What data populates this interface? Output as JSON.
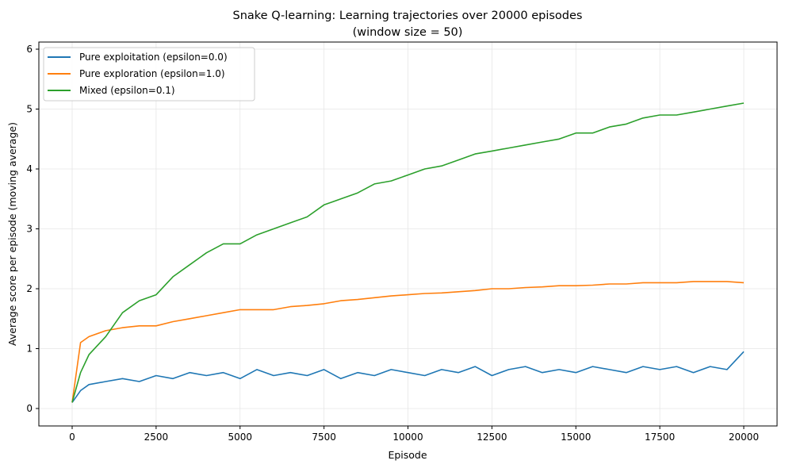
{
  "chart_data": {
    "type": "line",
    "title": "Snake Q-learning: Learning trajectories over 20000 episodes",
    "subtitle": "(window size = 50)",
    "xlabel": "Episode",
    "ylabel": "Average score per episode (moving average)",
    "xlim": [
      -1000,
      21000
    ],
    "ylim": [
      -0.3,
      6.1
    ],
    "xticks": [
      0,
      2500,
      5000,
      7500,
      10000,
      12500,
      15000,
      17500,
      20000
    ],
    "yticks": [
      0,
      1,
      2,
      3,
      4,
      5,
      6
    ],
    "grid": true,
    "legend_position": "top-left",
    "x": [
      0,
      250,
      500,
      1000,
      1500,
      2000,
      2500,
      3000,
      3500,
      4000,
      4500,
      5000,
      5500,
      6000,
      6500,
      7000,
      7500,
      8000,
      8500,
      9000,
      9500,
      10000,
      10500,
      11000,
      11500,
      12000,
      12500,
      13000,
      13500,
      14000,
      14500,
      15000,
      15500,
      16000,
      16500,
      17000,
      17500,
      18000,
      18500,
      19000,
      19500,
      20000
    ],
    "series": [
      {
        "name": "Pure exploitation (epsilon=0.0)",
        "color": "#1f77b4",
        "values": [
          0.1,
          0.3,
          0.4,
          0.45,
          0.5,
          0.45,
          0.55,
          0.5,
          0.6,
          0.55,
          0.6,
          0.5,
          0.65,
          0.55,
          0.6,
          0.55,
          0.65,
          0.5,
          0.6,
          0.55,
          0.65,
          0.6,
          0.55,
          0.65,
          0.6,
          0.7,
          0.55,
          0.65,
          0.7,
          0.6,
          0.65,
          0.6,
          0.7,
          0.65,
          0.6,
          0.7,
          0.65,
          0.7,
          0.6,
          0.7,
          0.65,
          0.95
        ]
      },
      {
        "name": "Pure exploration (epsilon=1.0)",
        "color": "#ff7f0e",
        "values": [
          0.1,
          1.1,
          1.2,
          1.3,
          1.35,
          1.38,
          1.38,
          1.45,
          1.5,
          1.55,
          1.6,
          1.65,
          1.65,
          1.65,
          1.7,
          1.72,
          1.75,
          1.8,
          1.82,
          1.85,
          1.88,
          1.9,
          1.92,
          1.93,
          1.95,
          1.97,
          2.0,
          2.0,
          2.02,
          2.03,
          2.05,
          2.05,
          2.06,
          2.08,
          2.08,
          2.1,
          2.1,
          2.1,
          2.12,
          2.12,
          2.12,
          2.1
        ]
      },
      {
        "name": "Mixed (epsilon=0.1)",
        "color": "#2ca02c",
        "values": [
          0.1,
          0.6,
          0.9,
          1.2,
          1.6,
          1.8,
          1.9,
          2.2,
          2.4,
          2.6,
          2.75,
          2.75,
          2.9,
          3.0,
          3.1,
          3.2,
          3.4,
          3.5,
          3.6,
          3.75,
          3.8,
          3.9,
          4.0,
          4.05,
          4.15,
          4.25,
          4.3,
          4.35,
          4.4,
          4.45,
          4.5,
          4.6,
          4.6,
          4.7,
          4.75,
          4.85,
          4.9,
          4.9,
          4.95,
          5.0,
          5.05,
          5.1
        ]
      }
    ]
  }
}
